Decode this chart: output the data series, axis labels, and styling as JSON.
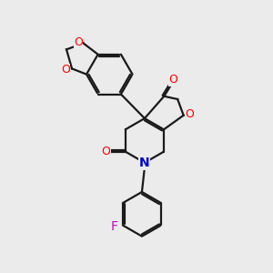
{
  "bg_color": "#ebebeb",
  "bond_color": "#1a1a1a",
  "O_color": "#ff0000",
  "N_color": "#0000cc",
  "F_color": "#cc00cc",
  "lw": 1.6,
  "figsize": [
    3.0,
    3.0
  ],
  "dpi": 100,
  "xlim": [
    0,
    10
  ],
  "ylim": [
    0,
    10
  ]
}
